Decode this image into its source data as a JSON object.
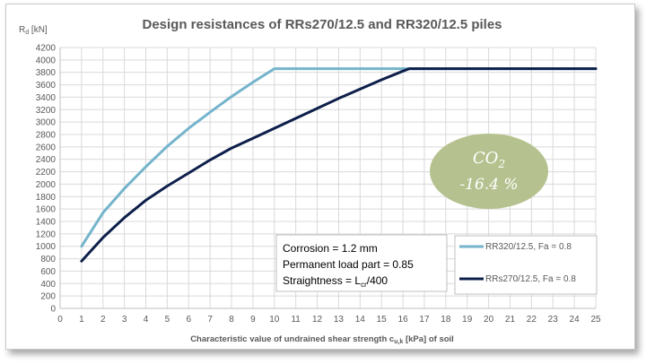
{
  "chart_data": {
    "type": "line",
    "title": "Design resistances of RRs270/12.5 and RR320/12.5 piles",
    "ylabel": "R",
    "ylabel_sub": "d",
    "ylabel_unit": " [kN]",
    "xlabel_main": "Characteristic value of undrained shear strength c",
    "xlabel_sub": "u,k",
    "xlabel_rest": " [kPa]  of soil",
    "xlim": [
      0,
      25
    ],
    "ylim": [
      0,
      4200
    ],
    "xticks": [
      0,
      1,
      2,
      3,
      4,
      5,
      6,
      7,
      8,
      9,
      10,
      11,
      12,
      13,
      14,
      15,
      16,
      17,
      18,
      19,
      20,
      21,
      22,
      23,
      24,
      25
    ],
    "yticks": [
      0,
      200,
      400,
      600,
      800,
      1000,
      1200,
      1400,
      1600,
      1800,
      2000,
      2200,
      2400,
      2600,
      2800,
      3000,
      3200,
      3400,
      3600,
      3800,
      4000,
      4200
    ],
    "grid": true,
    "legend_position": "bottom-right",
    "series": [
      {
        "name": "RR320/12.5, Fa = 0.8",
        "color": "#74b4cc",
        "x": [
          1,
          2,
          3,
          4,
          5,
          6,
          7,
          8,
          9,
          10,
          11,
          12,
          13,
          14,
          15,
          16,
          17,
          18,
          19,
          20,
          21,
          22,
          23,
          24,
          25
        ],
        "y": [
          1000,
          1540,
          1930,
          2280,
          2610,
          2900,
          3160,
          3410,
          3640,
          3860,
          3860,
          3860,
          3860,
          3860,
          3860,
          3860,
          3860,
          3860,
          3860,
          3860,
          3860,
          3860,
          3860,
          3860,
          3860
        ]
      },
      {
        "name": "RRs270/12.5, Fa = 0.8",
        "color": "#0d1f4a",
        "x": [
          1,
          2,
          3,
          4,
          5,
          6,
          7,
          8,
          9,
          10,
          11,
          12,
          13,
          14,
          15,
          16,
          16.3,
          17,
          18,
          19,
          20,
          21,
          22,
          23,
          24,
          25
        ],
        "y": [
          760,
          1140,
          1460,
          1740,
          1970,
          2180,
          2390,
          2580,
          2740,
          2900,
          3060,
          3220,
          3380,
          3530,
          3680,
          3820,
          3860,
          3860,
          3860,
          3860,
          3860,
          3860,
          3860,
          3860,
          3860,
          3860
        ]
      }
    ],
    "annotations": {
      "note_lines": [
        {
          "main": "Corrosion = 1.2 mm",
          "sub": "",
          "rest": ""
        },
        {
          "main": "Permanent load part = 0.85",
          "sub": "",
          "rest": ""
        },
        {
          "main": "Straightness = L",
          "sub": "cr",
          "rest": "/400"
        }
      ],
      "co2_label": "CO",
      "co2_sub": "2",
      "co2_value": "-16.4 %",
      "co2_color": "#b5c18e"
    }
  }
}
